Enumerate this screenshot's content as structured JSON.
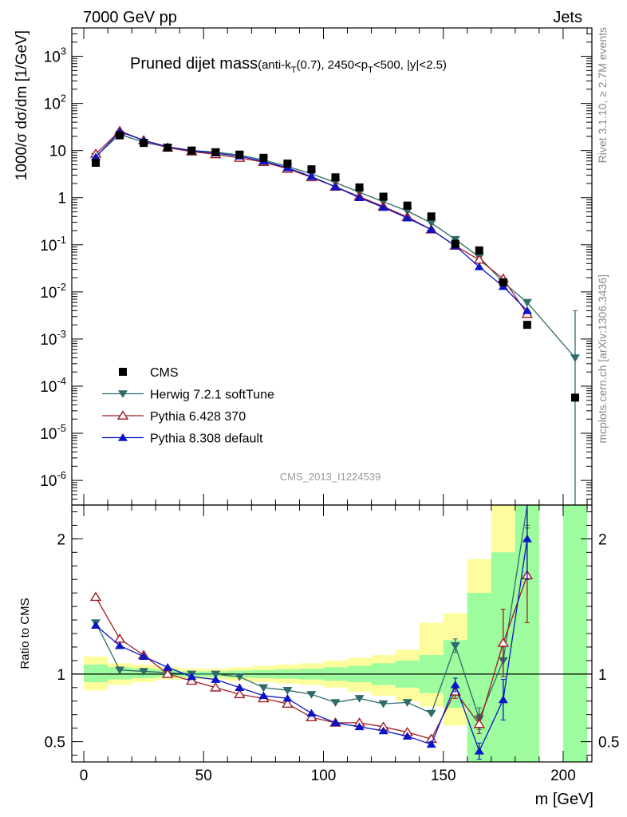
{
  "header": {
    "left": "7000 GeV pp",
    "right": "Jets"
  },
  "side_labels": {
    "rivet": "Rivet 3.1.10, ≥ 2.7M events",
    "mcplots": "mcplots.cern.ch [arXiv:1306.3436]"
  },
  "watermark": "CMS_2013_I1224539",
  "colors": {
    "cms": "#000000",
    "herwig": "#2f6b6b",
    "pythia6": "#a01c24",
    "pythia8": "#0a14c8",
    "band_inner": "#9dfc9d",
    "band_outer": "#fdfd9d"
  },
  "chart_data": [
    {
      "type": "scatter",
      "panel": "main",
      "title_main": "Pruned dijet mass",
      "title_sub": "(anti-k_T(0.7), 2450<p_T<500, |y|<2.5)",
      "ylabel": "1000/σ dσ/dm [1/GeV]",
      "yscale": "log",
      "ylim": [
        3e-07,
        4000
      ],
      "xlim": [
        -5,
        212
      ],
      "y_ticks": [
        {
          "value": 1000,
          "label": "10^3"
        },
        {
          "value": 100,
          "label": "10^2"
        },
        {
          "value": 10,
          "label": "10"
        },
        {
          "value": 1,
          "label": "1"
        },
        {
          "value": 0.1,
          "label": "10^-1"
        },
        {
          "value": 0.01,
          "label": "10^-2"
        },
        {
          "value": 0.001,
          "label": "10^-3"
        },
        {
          "value": 0.0001,
          "label": "10^-4"
        },
        {
          "value": 1e-05,
          "label": "10^-5"
        },
        {
          "value": 1e-06,
          "label": "10^-6"
        }
      ],
      "series": [
        {
          "name": "CMS",
          "key": "cms",
          "marker": "square",
          "x": [
            5,
            15,
            25,
            35,
            45,
            55,
            65,
            75,
            85,
            95,
            105,
            115,
            125,
            135,
            145,
            155,
            165,
            175,
            185,
            205
          ],
          "y": [
            5.5,
            21,
            14.5,
            11.5,
            10,
            9.2,
            8.2,
            7,
            5.3,
            4,
            2.7,
            1.65,
            1.05,
            0.68,
            0.4,
            0.105,
            0.076,
            0.016,
            0.002,
            5.7e-05
          ],
          "yerr": [
            0,
            0,
            0,
            0,
            0,
            0,
            0,
            0,
            0,
            0,
            0,
            0,
            0,
            0,
            0,
            0,
            0,
            0,
            0,
            0
          ]
        },
        {
          "name": "Herwig 7.2.1 softTune",
          "key": "herwig",
          "marker": "triangle-down",
          "x": [
            5,
            15,
            25,
            35,
            45,
            55,
            65,
            75,
            85,
            95,
            105,
            115,
            125,
            135,
            145,
            155,
            165,
            175,
            185,
            205
          ],
          "y": [
            7.5,
            22,
            15,
            11.8,
            10,
            9.3,
            8,
            6.3,
            4.6,
            3.2,
            2.1,
            1.3,
            0.82,
            0.52,
            0.29,
            0.13,
            0.055,
            0.016,
            0.006,
            0.0004
          ],
          "yerr": [
            0,
            0,
            0,
            0,
            0,
            0,
            0,
            0,
            0,
            0,
            0,
            0,
            0,
            0,
            0,
            0,
            0,
            0,
            0,
            0.0036
          ]
        },
        {
          "name": "Pythia 6.428 370",
          "key": "pythia6",
          "marker": "triangle-up-open",
          "x": [
            5,
            15,
            25,
            35,
            45,
            55,
            65,
            75,
            85,
            95,
            105,
            115,
            125,
            135,
            145,
            155,
            165,
            175,
            185
          ],
          "y": [
            8.5,
            26,
            16.5,
            11.5,
            9.5,
            8.3,
            7,
            5.7,
            4.1,
            2.7,
            1.7,
            1.05,
            0.65,
            0.39,
            0.21,
            0.095,
            0.048,
            0.019,
            0.0034
          ],
          "yerr": [
            0,
            0,
            0,
            0,
            0,
            0,
            0,
            0,
            0,
            0,
            0,
            0,
            0,
            0,
            0,
            0,
            0,
            0,
            0
          ]
        },
        {
          "name": "Pythia 8.308 default",
          "key": "pythia8",
          "marker": "triangle-up",
          "x": [
            5,
            15,
            25,
            35,
            45,
            55,
            65,
            75,
            85,
            95,
            105,
            115,
            125,
            135,
            145,
            155,
            165,
            175,
            185
          ],
          "y": [
            7.3,
            25,
            16.5,
            12,
            10,
            8.8,
            7.6,
            5.9,
            4.3,
            2.8,
            1.7,
            1.0,
            0.62,
            0.37,
            0.21,
            0.095,
            0.034,
            0.013,
            0.004
          ],
          "yerr": [
            0,
            0,
            0,
            0,
            0,
            0,
            0,
            0,
            0,
            0,
            0,
            0,
            0,
            0,
            0,
            0,
            0,
            0,
            0
          ]
        }
      ],
      "legend": [
        "CMS",
        "Herwig 7.2.1 softTune",
        "Pythia 6.428 370",
        "Pythia 8.308 default"
      ]
    },
    {
      "type": "line",
      "panel": "ratio",
      "ylabel": "Ratio to CMS",
      "xlabel": "m [GeV]",
      "xlim": [
        -5,
        212
      ],
      "ylim": [
        0.35,
        2.25
      ],
      "y_ticks": [
        {
          "value": 2,
          "label": "2"
        },
        {
          "value": 1,
          "label": "1"
        },
        {
          "value": 0.5,
          "label": "0.5"
        }
      ],
      "x_ticks": [
        {
          "value": 0,
          "label": "0"
        },
        {
          "value": 50,
          "label": "50"
        },
        {
          "value": 100,
          "label": "100"
        },
        {
          "value": 150,
          "label": "150"
        },
        {
          "value": 200,
          "label": "200"
        }
      ],
      "bands": [
        {
          "x0": 0,
          "x1": 10,
          "inner": [
            0.94,
            1.07
          ],
          "outer": [
            0.88,
            1.13
          ]
        },
        {
          "x0": 10,
          "x1": 20,
          "inner": [
            0.96,
            1.05
          ],
          "outer": [
            0.92,
            1.08
          ]
        },
        {
          "x0": 20,
          "x1": 30,
          "inner": [
            0.97,
            1.04
          ],
          "outer": [
            0.94,
            1.07
          ]
        },
        {
          "x0": 30,
          "x1": 40,
          "inner": [
            0.98,
            1.03
          ],
          "outer": [
            0.96,
            1.05
          ]
        },
        {
          "x0": 40,
          "x1": 50,
          "inner": [
            0.98,
            1.02
          ],
          "outer": [
            0.96,
            1.04
          ]
        },
        {
          "x0": 50,
          "x1": 60,
          "inner": [
            0.98,
            1.02
          ],
          "outer": [
            0.96,
            1.04
          ]
        },
        {
          "x0": 60,
          "x1": 70,
          "inner": [
            0.975,
            1.025
          ],
          "outer": [
            0.95,
            1.05
          ]
        },
        {
          "x0": 70,
          "x1": 80,
          "inner": [
            0.97,
            1.03
          ],
          "outer": [
            0.94,
            1.06
          ]
        },
        {
          "x0": 80,
          "x1": 90,
          "inner": [
            0.965,
            1.035
          ],
          "outer": [
            0.93,
            1.07
          ]
        },
        {
          "x0": 90,
          "x1": 100,
          "inner": [
            0.96,
            1.04
          ],
          "outer": [
            0.92,
            1.08
          ]
        },
        {
          "x0": 100,
          "x1": 110,
          "inner": [
            0.95,
            1.05
          ],
          "outer": [
            0.9,
            1.1
          ]
        },
        {
          "x0": 110,
          "x1": 120,
          "inner": [
            0.94,
            1.06
          ],
          "outer": [
            0.87,
            1.12
          ]
        },
        {
          "x0": 120,
          "x1": 130,
          "inner": [
            0.92,
            1.08
          ],
          "outer": [
            0.84,
            1.14
          ]
        },
        {
          "x0": 130,
          "x1": 140,
          "inner": [
            0.9,
            1.1
          ],
          "outer": [
            0.8,
            1.18
          ]
        },
        {
          "x0": 140,
          "x1": 150,
          "inner": [
            0.86,
            1.14
          ],
          "outer": [
            0.76,
            1.38
          ]
        },
        {
          "x0": 150,
          "x1": 160,
          "inner": [
            0.75,
            1.25
          ],
          "outer": [
            0.62,
            1.45
          ]
        },
        {
          "x0": 160,
          "x1": 170,
          "inner": [
            0.35,
            1.6
          ],
          "outer": [
            0.35,
            1.85
          ]
        },
        {
          "x0": 170,
          "x1": 180,
          "inner": [
            0.35,
            1.9
          ],
          "outer": [
            0.35,
            2.25
          ]
        },
        {
          "x0": 180,
          "x1": 190,
          "inner": [
            0.35,
            2.25
          ],
          "outer": [
            0.35,
            2.25
          ]
        },
        {
          "x0": 200,
          "x1": 210,
          "inner": [
            0.35,
            2.25
          ],
          "outer": [
            0.35,
            2.25
          ]
        }
      ],
      "series": [
        {
          "name": "Herwig 7.2.1 softTune",
          "key": "herwig",
          "marker": "triangle-down",
          "x": [
            5,
            15,
            25,
            35,
            45,
            55,
            65,
            75,
            85,
            95,
            105,
            115,
            125,
            135,
            145,
            155,
            165,
            175,
            185
          ],
          "y": [
            1.38,
            1.03,
            1.02,
            1.01,
            1.0,
            1.0,
            0.98,
            0.9,
            0.88,
            0.85,
            0.79,
            0.82,
            0.78,
            0.79,
            0.71,
            1.21,
            0.67,
            1.1,
            2.4
          ],
          "yerr": [
            0,
            0,
            0,
            0,
            0,
            0,
            0,
            0,
            0,
            0,
            0,
            0,
            0,
            0,
            0,
            0.05,
            0.08,
            0.1,
            0.3
          ]
        },
        {
          "name": "Pythia 6.428 370",
          "key": "pythia6",
          "marker": "triangle-up-open",
          "x": [
            5,
            15,
            25,
            35,
            45,
            55,
            65,
            75,
            85,
            95,
            105,
            115,
            125,
            135,
            145,
            155,
            165,
            175,
            185
          ],
          "y": [
            1.57,
            1.26,
            1.14,
            1.0,
            0.95,
            0.9,
            0.85,
            0.82,
            0.78,
            0.68,
            0.64,
            0.64,
            0.61,
            0.57,
            0.52,
            0.87,
            0.63,
            1.23,
            1.73
          ],
          "yerr": [
            0,
            0,
            0,
            0,
            0,
            0,
            0,
            0,
            0,
            0,
            0,
            0,
            0,
            0,
            0.02,
            0.05,
            0.07,
            0.25,
            0.35
          ]
        },
        {
          "name": "Pythia 8.308 default",
          "key": "pythia8",
          "marker": "triangle-up",
          "x": [
            5,
            15,
            25,
            35,
            45,
            55,
            65,
            75,
            85,
            95,
            105,
            115,
            125,
            135,
            145,
            155,
            165,
            175,
            185
          ],
          "y": [
            1.36,
            1.21,
            1.13,
            1.05,
            0.98,
            0.96,
            0.9,
            0.84,
            0.82,
            0.71,
            0.64,
            0.61,
            0.58,
            0.54,
            0.48,
            0.92,
            0.43,
            0.81,
            2.0
          ],
          "yerr": [
            0,
            0,
            0,
            0,
            0,
            0,
            0,
            0,
            0,
            0,
            0,
            0,
            0,
            0,
            0.02,
            0.05,
            0.06,
            0.15,
            0.3
          ]
        }
      ]
    }
  ]
}
